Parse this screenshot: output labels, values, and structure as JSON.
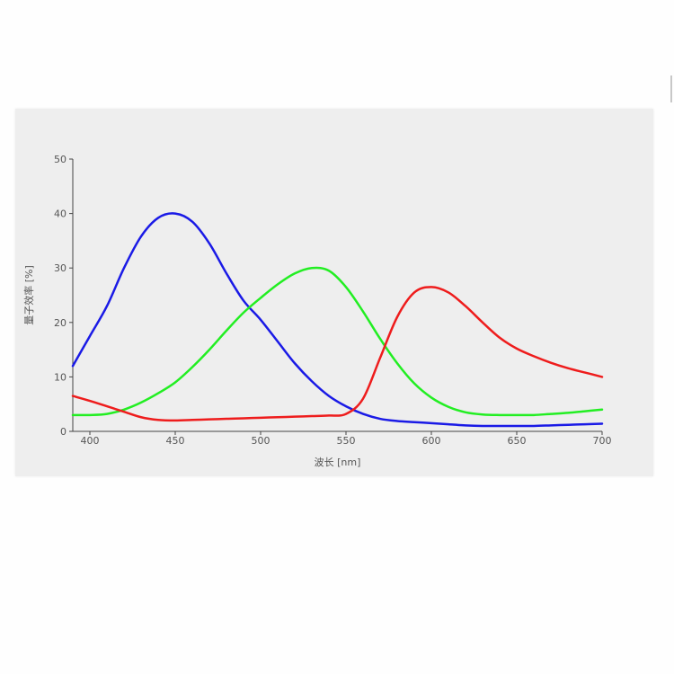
{
  "chart_data": {
    "type": "line",
    "title": "",
    "xlabel": "波长 [nm]",
    "ylabel": "量子效率 [%]",
    "xlim": [
      390,
      700
    ],
    "ylim": [
      0,
      50
    ],
    "x_ticks": [
      400,
      450,
      500,
      550,
      600,
      650,
      700
    ],
    "y_ticks": [
      0,
      10,
      20,
      30,
      40,
      50
    ],
    "grid": false,
    "legend": "none",
    "series": [
      {
        "color": "#1a1ae6",
        "x": [
          390,
          400,
          410,
          420,
          430,
          440,
          450,
          460,
          470,
          480,
          490,
          500,
          510,
          520,
          530,
          540,
          550,
          560,
          570,
          580,
          590,
          600,
          610,
          620,
          630,
          640,
          650,
          660,
          670,
          680,
          690,
          700
        ],
        "y": [
          12.0,
          17.5,
          23.0,
          30.0,
          35.8,
          39.2,
          40.0,
          38.5,
          34.5,
          29.0,
          24.0,
          20.5,
          16.5,
          12.5,
          9.2,
          6.5,
          4.6,
          3.2,
          2.3,
          1.9,
          1.7,
          1.5,
          1.3,
          1.1,
          1.0,
          1.0,
          1.0,
          1.0,
          1.1,
          1.2,
          1.3,
          1.4
        ]
      },
      {
        "color": "#22ee22",
        "x": [
          390,
          400,
          410,
          420,
          430,
          440,
          450,
          460,
          470,
          480,
          490,
          500,
          510,
          520,
          530,
          540,
          550,
          560,
          570,
          580,
          590,
          600,
          610,
          620,
          630,
          640,
          650,
          660,
          670,
          680,
          690,
          700
        ],
        "y": [
          3.0,
          3.0,
          3.2,
          4.0,
          5.3,
          7.0,
          9.0,
          11.8,
          15.0,
          18.5,
          21.8,
          24.5,
          27.0,
          29.0,
          30.0,
          29.5,
          26.5,
          22.0,
          17.0,
          12.5,
          8.8,
          6.2,
          4.5,
          3.5,
          3.1,
          3.0,
          3.0,
          3.0,
          3.2,
          3.4,
          3.7,
          4.0
        ]
      },
      {
        "color": "#ee1c1c",
        "x": [
          390,
          400,
          410,
          420,
          430,
          440,
          450,
          460,
          470,
          480,
          490,
          500,
          510,
          520,
          530,
          540,
          550,
          560,
          570,
          580,
          590,
          600,
          610,
          620,
          630,
          640,
          650,
          660,
          670,
          680,
          690,
          700
        ],
        "y": [
          6.5,
          5.6,
          4.6,
          3.6,
          2.6,
          2.1,
          2.0,
          2.1,
          2.2,
          2.3,
          2.4,
          2.5,
          2.6,
          2.7,
          2.8,
          2.9,
          3.2,
          6.0,
          13.5,
          21.0,
          25.5,
          26.5,
          25.5,
          23.0,
          20.0,
          17.2,
          15.2,
          13.8,
          12.6,
          11.6,
          10.8,
          10.0
        ]
      }
    ]
  }
}
